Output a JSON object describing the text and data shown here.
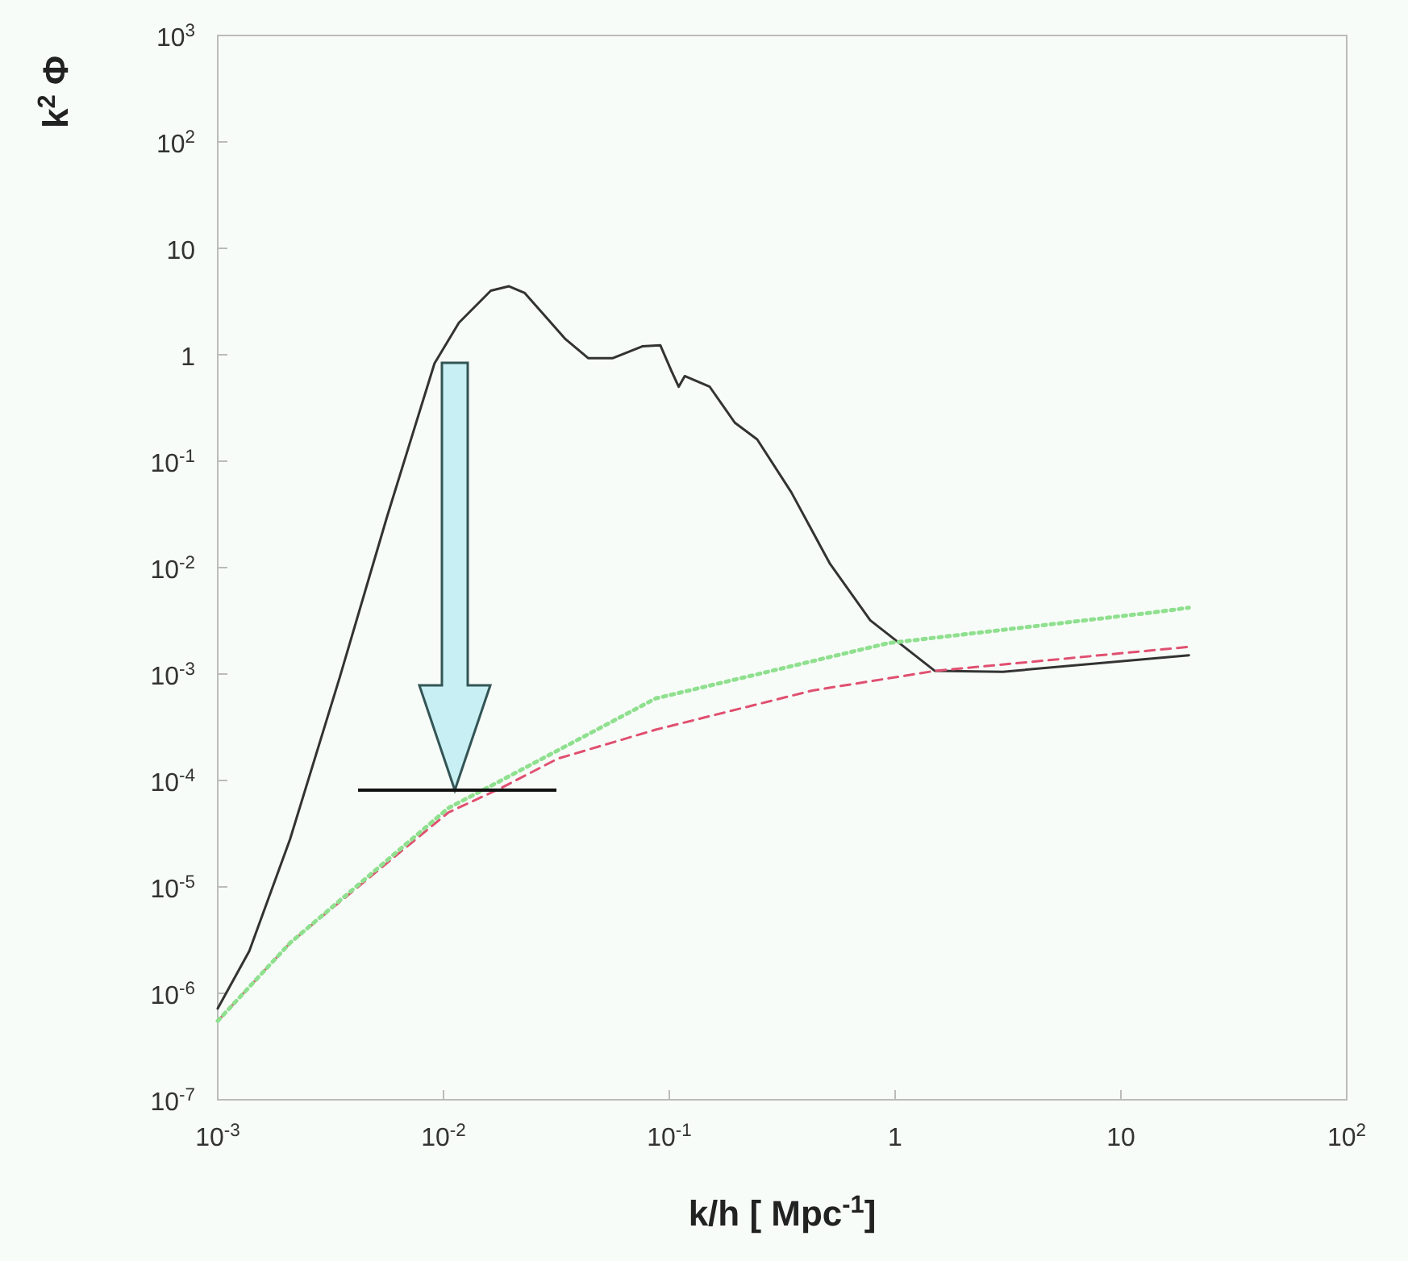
{
  "chart_data": {
    "type": "line",
    "xlabel": "k/h  [ Mpc$^{-1}$]",
    "ylabel": "k$^{2}$ Φ",
    "log": "xy",
    "xlim": [
      0.001,
      100
    ],
    "ylim": [
      1e-07,
      1000
    ],
    "xticks": [
      {
        "value": 0.001,
        "label": "10$^{-3}$"
      },
      {
        "value": 0.01,
        "label": "10$^{-2}$"
      },
      {
        "value": 0.1,
        "label": "10$^{-1}$"
      },
      1,
      10,
      {
        "value": 100,
        "label": "10$^{2}$"
      }
    ],
    "yticks": [
      {
        "value": 1e-07,
        "label": "10$^{-7}$"
      },
      {
        "value": 1e-06,
        "label": "10$^{-6}$"
      },
      {
        "value": 1e-05,
        "label": "10$^{-5}$"
      },
      {
        "value": 0.0001,
        "label": "10$^{-4}$"
      },
      {
        "value": 0.001,
        "label": "10$^{-3}$"
      },
      {
        "value": 0.01,
        "label": "10$^{-2}$"
      },
      {
        "value": 0.1,
        "label": "10$^{-1}$"
      },
      1,
      10,
      {
        "value": 100,
        "label": "10$^{2}$"
      },
      {
        "value": 1000,
        "label": "10$^{3}$"
      }
    ],
    "grid": false,
    "series": [
      {
        "color": "#333333",
        "line_style": "solid",
        "x": [
          0.001,
          0.00138,
          0.00209,
          0.00347,
          0.00562,
          0.00912,
          0.0117,
          0.0162,
          0.0195,
          0.0229,
          0.0347,
          0.0437,
          0.0562,
          0.0759,
          0.0912,
          0.102,
          0.11,
          0.117,
          0.151,
          0.195,
          0.245,
          0.347,
          0.513,
          0.776,
          1.5,
          3.0,
          20
        ],
        "values": [
          7.2e-07,
          2.5e-06,
          2.8e-05,
          0.00093,
          0.03,
          0.83,
          2.0,
          4.0,
          4.4,
          3.8,
          1.4,
          0.93,
          0.93,
          1.2,
          1.23,
          0.71,
          0.5,
          0.63,
          0.5,
          0.23,
          0.16,
          0.051,
          0.011,
          0.0032,
          0.00107,
          0.00105,
          0.0015
        ]
      },
      {
        "color": "#e05070",
        "line_style": "dashed",
        "x": [
          0.001,
          0.0021,
          0.0105,
          0.018,
          0.032,
          0.087,
          0.43,
          1.5,
          20
        ],
        "values": [
          5.5e-07,
          3e-06,
          5e-05,
          8.5e-05,
          0.00016,
          0.0003,
          0.0007,
          0.00107,
          0.0018
        ]
      },
      {
        "color": "#8fe08f",
        "line_style": "dotted",
        "x": [
          0.001,
          0.0021,
          0.0105,
          0.018,
          0.087,
          0.93,
          14,
          20
        ],
        "values": [
          5.5e-07,
          3e-06,
          5.5e-05,
          0.0001,
          0.00059,
          0.00195,
          0.0038,
          0.0042
        ]
      }
    ]
  }
}
